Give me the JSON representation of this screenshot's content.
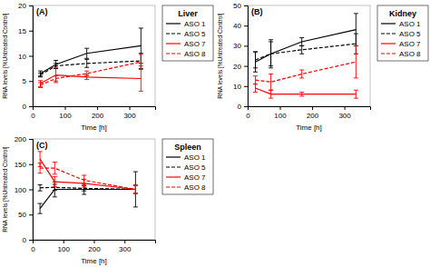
{
  "chart_data": [
    {
      "type": "line",
      "title": "Liver",
      "annotations": [
        "(A)"
      ],
      "xlabel": "Time [h]",
      "ylabel": "RNA levels [%Untreated Control]",
      "x": [
        24,
        72,
        168,
        336
      ],
      "series": [
        {
          "name": "ASO 1",
          "color": "black",
          "line_style": "solid",
          "values": [
            6.5,
            8.3,
            10.5,
            12.0
          ],
          "yerr": [
            0.5,
            0.8,
            1.0,
            3.5
          ]
        },
        {
          "name": "ASO 5",
          "color": "black",
          "line_style": "dashed",
          "values": [
            6.2,
            8.0,
            8.5,
            9.0
          ],
          "yerr": [
            0.4,
            0.5,
            0.8,
            1.5
          ]
        },
        {
          "name": "ASO 7",
          "color": "red",
          "line_style": "solid",
          "values": [
            4.5,
            6.2,
            5.8,
            5.5
          ],
          "yerr": [
            0.6,
            1.5,
            0.5,
            2.5
          ]
        },
        {
          "name": "ASO 8",
          "color": "red",
          "line_style": "dashed",
          "values": [
            4.2,
            5.5,
            6.5,
            8.8
          ],
          "yerr": [
            0.5,
            0.5,
            0.5,
            1.5
          ]
        }
      ],
      "xlim": [
        0,
        380
      ],
      "xticks": [
        0,
        100,
        200,
        300
      ],
      "ylim": [
        0,
        20
      ],
      "yticks": [
        0,
        5,
        10,
        15,
        20
      ],
      "grid": false,
      "legend": "right"
    },
    {
      "type": "line",
      "title": "Kidney",
      "annotations": [
        "(B)"
      ],
      "xlabel": "Time [h]",
      "ylabel": "RNA levels [%Untreated Control]",
      "x": [
        24,
        72,
        168,
        336
      ],
      "series": [
        {
          "name": "ASO 1",
          "color": "black",
          "line_style": "solid",
          "values": [
            22,
            26,
            32,
            38
          ],
          "yerr": [
            5,
            6,
            2,
            8
          ]
        },
        {
          "name": "ASO 5",
          "color": "black",
          "line_style": "dashed",
          "values": [
            23,
            26,
            28,
            31
          ],
          "yerr": [
            4,
            7,
            2,
            5
          ]
        },
        {
          "name": "ASO 7",
          "color": "red",
          "line_style": "solid",
          "values": [
            9,
            6,
            6,
            6
          ],
          "yerr": [
            2,
            2,
            1,
            2
          ]
        },
        {
          "name": "ASO 8",
          "color": "red",
          "line_style": "dashed",
          "values": [
            13,
            12,
            16,
            22
          ],
          "yerr": [
            2,
            4,
            2,
            8
          ]
        }
      ],
      "xlim": [
        0,
        380
      ],
      "xticks": [
        0,
        100,
        200,
        300
      ],
      "ylim": [
        0,
        50
      ],
      "yticks": [
        0,
        10,
        20,
        30,
        40,
        50
      ],
      "grid": false,
      "legend": "right"
    },
    {
      "type": "line",
      "title": "Spleen",
      "annotations": [
        "(C)"
      ],
      "xlabel": "Time [h]",
      "ylabel": "RNA levels [%Untreated Control]",
      "x": [
        24,
        72,
        168,
        336
      ],
      "series": [
        {
          "name": "ASO 1",
          "color": "black",
          "line_style": "solid",
          "values": [
            62,
            100,
            100,
            100
          ],
          "yerr": [
            10,
            15,
            10,
            35
          ]
        },
        {
          "name": "ASO 5",
          "color": "black",
          "line_style": "dashed",
          "values": [
            103,
            104,
            102,
            100
          ],
          "yerr": [
            6,
            6,
            5,
            8
          ]
        },
        {
          "name": "ASO 7",
          "color": "red",
          "line_style": "solid",
          "values": [
            160,
            115,
            112,
            100
          ],
          "yerr": [
            15,
            10,
            8,
            8
          ]
        },
        {
          "name": "ASO 8",
          "color": "red",
          "line_style": "dashed",
          "values": [
            142,
            142,
            118,
            100
          ],
          "yerr": [
            10,
            12,
            10,
            8
          ]
        }
      ],
      "xlim": [
        0,
        400
      ],
      "xticks": [
        0,
        100,
        200,
        300
      ],
      "ylim": [
        0,
        200
      ],
      "yticks": [
        0,
        50,
        100,
        150,
        200
      ],
      "grid": false,
      "legend": "right"
    }
  ]
}
